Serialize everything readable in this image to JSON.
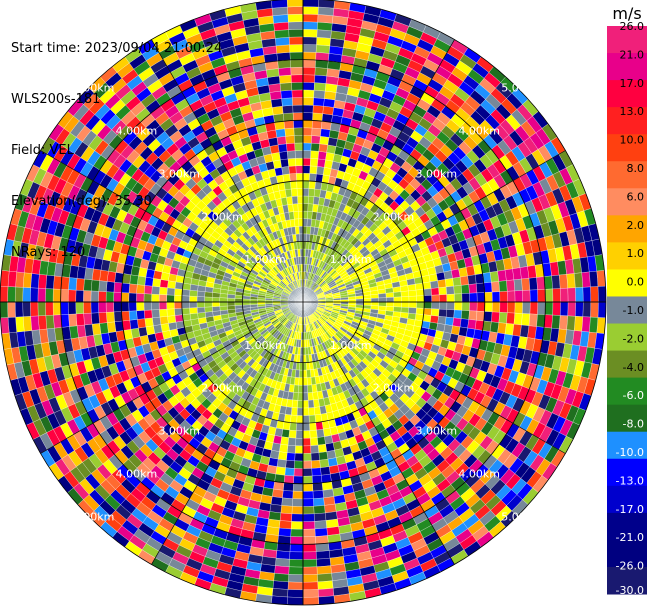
{
  "header": {
    "start_time": "Start time: 2023/09/04 21:00:24",
    "instrument": "WLS200s-181",
    "field": "Field: VEL",
    "elevation": "Elevation(deg): 35.30",
    "nrays": "NRays: 120"
  },
  "chart_data": {
    "type": "heatmap",
    "projection": "polar PPI",
    "field": "VEL",
    "n_rays": 120,
    "range_rings_km": [
      1.0,
      2.0,
      3.0,
      4.0,
      5.0
    ],
    "range_ring_labels": [
      "1.00km",
      "2.00km",
      "3.00km",
      "4.00km",
      "5.00km"
    ],
    "max_range_km": 5.0,
    "colorbar": {
      "unit": "m/s",
      "tick_labels": [
        "26.0",
        "21.0",
        "17.0",
        "13.0",
        "10.0",
        "8.0",
        "6.0",
        "2.0",
        "1.0",
        "0.0",
        "-1.0",
        "-2.0",
        "-4.0",
        "-6.0",
        "-8.0",
        "-10.0",
        "-13.0",
        "-17.0",
        "-21.0",
        "-26.0",
        "-30.0"
      ],
      "colors": [
        "#f0207a",
        "#e8008a",
        "#ff0040",
        "#ff2020",
        "#ff4010",
        "#ff6a30",
        "#ff8c60",
        "#ffa500",
        "#ffd000",
        "#ffff00",
        "#778899",
        "#9acd32",
        "#6b8e23",
        "#228b22",
        "#1f6f1f",
        "#1e90ff",
        "#0000ff",
        "#0000cd",
        "#00008b",
        "#000080",
        "#191970"
      ]
    },
    "coverage": {
      "inner_region_km": 2.0,
      "description_note": ""
    }
  }
}
